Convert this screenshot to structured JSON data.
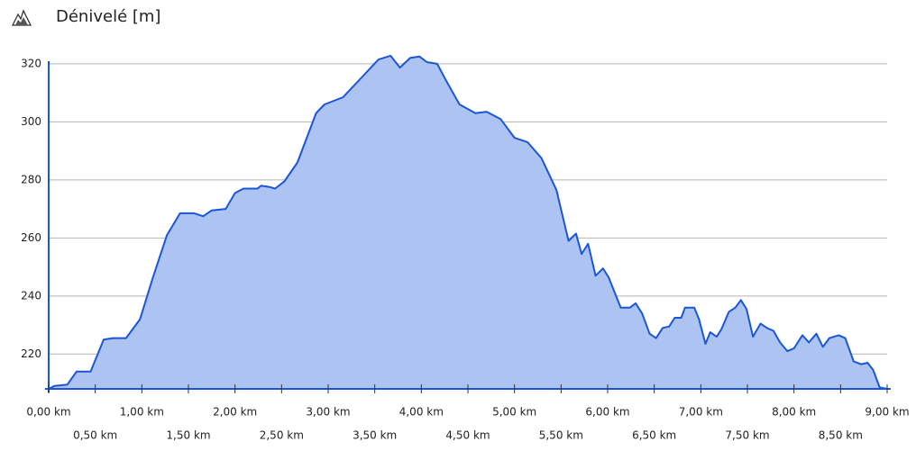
{
  "chart_data": {
    "type": "area",
    "title": "Dénivelé [m]",
    "color": "#1a56d6",
    "fill": "#adc3f1",
    "grid": true,
    "xlim": [
      0,
      9
    ],
    "ylim": [
      208,
      324
    ],
    "yticks": [
      220,
      240,
      260,
      280,
      300,
      320
    ],
    "xticks": [
      {
        "value": 0,
        "label": "0,00 km"
      },
      {
        "value": 0.5,
        "label": "0,50 km"
      },
      {
        "value": 1,
        "label": "1,00 km"
      },
      {
        "value": 1.5,
        "label": "1,50 km"
      },
      {
        "value": 2,
        "label": "2,00 km"
      },
      {
        "value": 2.5,
        "label": "2,50 km"
      },
      {
        "value": 3,
        "label": "3,00 km"
      },
      {
        "value": 3.5,
        "label": "3,50 km"
      },
      {
        "value": 4,
        "label": "4,00 km"
      },
      {
        "value": 4.5,
        "label": "4,50 km"
      },
      {
        "value": 5,
        "label": "5,00 km"
      },
      {
        "value": 5.5,
        "label": "5,50 km"
      },
      {
        "value": 6,
        "label": "6,00 km"
      },
      {
        "value": 6.5,
        "label": "6,50 km"
      },
      {
        "value": 7,
        "label": "7,00 km"
      },
      {
        "value": 7.5,
        "label": "7,50 km"
      },
      {
        "value": 8,
        "label": "8,00 km"
      },
      {
        "value": 8.5,
        "label": "8,50 km"
      },
      {
        "value": 9,
        "label": "9,00 km"
      }
    ],
    "x": [
      0,
      0.06,
      0.2,
      0.3,
      0.45,
      0.59,
      0.69,
      0.83,
      0.98,
      1.12,
      1.27,
      1.41,
      1.56,
      1.66,
      1.75,
      1.9,
      2.0,
      2.09,
      2.24,
      2.28,
      2.38,
      2.43,
      2.53,
      2.67,
      2.87,
      2.96,
      3.16,
      3.35,
      3.54,
      3.67,
      3.77,
      3.88,
      3.98,
      4.06,
      4.17,
      4.27,
      4.41,
      4.58,
      4.7,
      4.85,
      5.0,
      5.14,
      5.29,
      5.45,
      5.58,
      5.66,
      5.72,
      5.79,
      5.87,
      5.95,
      6.01,
      6.14,
      6.24,
      6.3,
      6.37,
      6.45,
      6.52,
      6.59,
      6.66,
      6.72,
      6.79,
      6.83,
      6.93,
      6.98,
      7.05,
      7.1,
      7.17,
      7.22,
      7.3,
      7.37,
      7.43,
      7.49,
      7.56,
      7.64,
      7.71,
      7.78,
      7.85,
      7.93,
      8.0,
      8.09,
      8.16,
      8.24,
      8.31,
      8.38,
      8.48,
      8.55,
      8.64,
      8.72,
      8.79,
      8.85,
      8.92,
      9.0
    ],
    "values": [
      208,
      209,
      209.5,
      214,
      214,
      225,
      225.5,
      225.5,
      232,
      246.5,
      261,
      268.5,
      268.5,
      267.5,
      269.5,
      270,
      275.5,
      277,
      277,
      278,
      277.5,
      277,
      279.5,
      286,
      303,
      306,
      308.5,
      315,
      321.5,
      322.8,
      318.7,
      322,
      322.5,
      320.6,
      320,
      314,
      306,
      303,
      303.5,
      301,
      294.5,
      293,
      287.5,
      276.5,
      259,
      261.5,
      254.5,
      258,
      247,
      249.5,
      246.5,
      236,
      236,
      237.5,
      234,
      227,
      225.5,
      229,
      229.5,
      232.5,
      232.5,
      236,
      236,
      232,
      223.5,
      227.5,
      226,
      228.5,
      234.5,
      236,
      238.6,
      235.5,
      226,
      230.5,
      229,
      228,
      224,
      221,
      222,
      226.5,
      224,
      227,
      222.5,
      225.5,
      226.5,
      225.5,
      217.5,
      216.5,
      217,
      214.5,
      208.5,
      208
    ]
  }
}
